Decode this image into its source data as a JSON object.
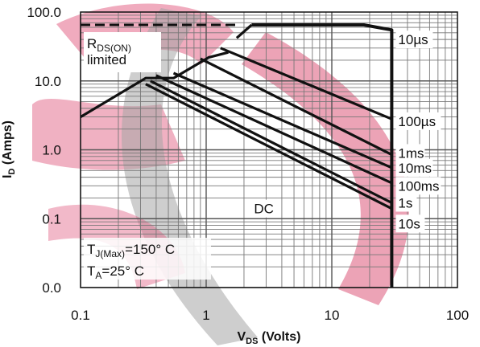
{
  "chart_data": {
    "type": "line",
    "xscale": "log",
    "yscale": "log",
    "xlim": [
      0.1,
      100
    ],
    "ylim": [
      0.01,
      100
    ],
    "grid": true,
    "x_ticks": [
      {
        "value": 0.1,
        "label": "0.1"
      },
      {
        "value": 1,
        "label": "1"
      },
      {
        "value": 10,
        "label": "10"
      },
      {
        "value": 100,
        "label": "100"
      }
    ],
    "y_ticks": [
      {
        "value": 100,
        "label": "100.0"
      },
      {
        "value": 10,
        "label": "10.0"
      },
      {
        "value": 1,
        "label": "1.0"
      },
      {
        "value": 0.1,
        "label": "0.1"
      },
      {
        "value": 0.01,
        "label": "0.0"
      }
    ],
    "xlabel": {
      "main": "V",
      "sub": "DS",
      "rest": " (Volts)"
    },
    "ylabel": {
      "main": "I",
      "sub": "D",
      "rest": " (Amps)"
    },
    "rds_limit": {
      "label_main": "R",
      "label_sub": "DS(ON)",
      "label_line2": "limited",
      "points": [
        [
          0.1,
          65
        ],
        [
          1.85,
          65
        ]
      ]
    },
    "envelope": [
      [
        2.3,
        65
      ],
      [
        18,
        65
      ],
      [
        30,
        55
      ],
      [
        30,
        0.01
      ]
    ],
    "series": [
      {
        "name": "10µs",
        "points": [
          [
            1.75,
            42
          ],
          [
            2.3,
            65
          ]
        ],
        "label_at": [
          30,
          40
        ]
      },
      {
        "name": "100µs",
        "points": [
          [
            1.3,
            30
          ],
          [
            30,
            2.8
          ]
        ],
        "label_at": [
          30,
          2.6
        ]
      },
      {
        "name": "1ms",
        "points": [
          [
            0.9,
            21
          ],
          [
            30,
            0.85
          ]
        ],
        "label_at": [
          30,
          0.9
        ]
      },
      {
        "name": "10ms",
        "points": [
          [
            0.55,
            13
          ],
          [
            30,
            0.55
          ]
        ],
        "label_at": [
          30,
          0.55
        ]
      },
      {
        "name": "100ms",
        "points": [
          [
            0.4,
            12
          ],
          [
            30,
            0.33
          ]
        ],
        "label_at": [
          30,
          0.3
        ]
      },
      {
        "name": "1s",
        "points": [
          [
            0.36,
            10
          ],
          [
            30,
            0.17
          ]
        ],
        "label_at": [
          30,
          0.17
        ]
      },
      {
        "name": "10s",
        "points": [
          [
            0.33,
            9
          ],
          [
            30,
            0.14
          ]
        ],
        "label_at": [
          30,
          0.085
        ]
      },
      {
        "name": "DC",
        "points": [
          [
            0.1,
            3
          ],
          [
            0.33,
            11
          ],
          [
            0.55,
            11
          ],
          [
            1.05,
            22
          ],
          [
            1.5,
            26
          ]
        ],
        "label_at": [
          2.4,
          0.14
        ]
      }
    ],
    "annotations": {
      "tj_main": "T",
      "tj_sub": "J(Max)",
      "tj_rest": "=150° C",
      "ta_main": "T",
      "ta_sub": "A",
      "ta_rest": "=25° C"
    }
  }
}
